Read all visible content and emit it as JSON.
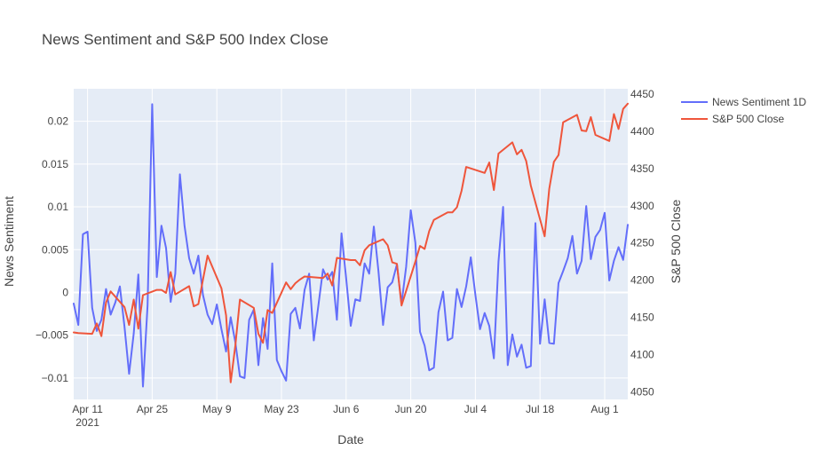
{
  "chart_data": {
    "type": "line",
    "title": "News Sentiment and S&P 500 Index Close",
    "xlabel": "Date",
    "ylabel": "News Sentiment",
    "y2label": "S&P 500 Close",
    "x_start": "2021-04-08",
    "x_end": "2021-08-06",
    "x_ticks": [
      {
        "date": "2021-04-11",
        "label": "Apr 11",
        "sublabel": "2021"
      },
      {
        "date": "2021-04-25",
        "label": "Apr 25",
        "sublabel": ""
      },
      {
        "date": "2021-05-09",
        "label": "May 9",
        "sublabel": ""
      },
      {
        "date": "2021-05-23",
        "label": "May 23",
        "sublabel": ""
      },
      {
        "date": "2021-06-06",
        "label": "Jun 6",
        "sublabel": ""
      },
      {
        "date": "2021-06-20",
        "label": "Jun 20",
        "sublabel": ""
      },
      {
        "date": "2021-07-04",
        "label": "Jul 4",
        "sublabel": ""
      },
      {
        "date": "2021-07-18",
        "label": "Jul 18",
        "sublabel": ""
      },
      {
        "date": "2021-08-01",
        "label": "Aug 1",
        "sublabel": ""
      }
    ],
    "ylim": [
      -0.0125,
      0.0238
    ],
    "y_ticks": [
      {
        "value": -0.01,
        "label": "−0.01"
      },
      {
        "value": -0.005,
        "label": "−0.005"
      },
      {
        "value": 0,
        "label": "0"
      },
      {
        "value": 0.005,
        "label": "0.005"
      },
      {
        "value": 0.01,
        "label": "0.01"
      },
      {
        "value": 0.015,
        "label": "0.015"
      },
      {
        "value": 0.02,
        "label": "0.02"
      }
    ],
    "y2lim": [
      4040,
      4457
    ],
    "y2_ticks": [
      {
        "value": 4050,
        "label": "4050"
      },
      {
        "value": 4100,
        "label": "4100"
      },
      {
        "value": 4150,
        "label": "4150"
      },
      {
        "value": 4200,
        "label": "4200"
      },
      {
        "value": 4250,
        "label": "4250"
      },
      {
        "value": 4300,
        "label": "4300"
      },
      {
        "value": 4350,
        "label": "4350"
      },
      {
        "value": 4400,
        "label": "4400"
      },
      {
        "value": 4450,
        "label": "4450"
      }
    ],
    "grid": true,
    "legend_position": "top-right",
    "series": [
      {
        "name": "News Sentiment 1D",
        "axis": "y",
        "color": "#636EFA",
        "points": [
          [
            "2021-04-08",
            -0.0013
          ],
          [
            "2021-04-09",
            -0.0038
          ],
          [
            "2021-04-10",
            0.0068
          ],
          [
            "2021-04-11",
            0.0071
          ],
          [
            "2021-04-12",
            -0.0018
          ],
          [
            "2021-04-13",
            -0.0045
          ],
          [
            "2021-04-14",
            -0.0032
          ],
          [
            "2021-04-15",
            0.0004
          ],
          [
            "2021-04-16",
            -0.0026
          ],
          [
            "2021-04-17",
            -0.0012
          ],
          [
            "2021-04-18",
            0.0007
          ],
          [
            "2021-04-19",
            -0.004
          ],
          [
            "2021-04-20",
            -0.0095
          ],
          [
            "2021-04-21",
            -0.0048
          ],
          [
            "2021-04-22",
            0.0021
          ],
          [
            "2021-04-23",
            -0.011
          ],
          [
            "2021-04-24",
            -0.0015
          ],
          [
            "2021-04-25",
            0.022
          ],
          [
            "2021-04-26",
            0.0018
          ],
          [
            "2021-04-27",
            0.0078
          ],
          [
            "2021-04-28",
            0.0052
          ],
          [
            "2021-04-29",
            -0.0011
          ],
          [
            "2021-04-30",
            0.0022
          ],
          [
            "2021-05-01",
            0.0138
          ],
          [
            "2021-05-02",
            0.0078
          ],
          [
            "2021-05-03",
            0.004
          ],
          [
            "2021-05-04",
            0.0022
          ],
          [
            "2021-05-05",
            0.0043
          ],
          [
            "2021-05-06",
            -0.0003
          ],
          [
            "2021-05-07",
            -0.0026
          ],
          [
            "2021-05-08",
            -0.0037
          ],
          [
            "2021-05-09",
            -0.0014
          ],
          [
            "2021-05-10",
            -0.0043
          ],
          [
            "2021-05-11",
            -0.0069
          ],
          [
            "2021-05-12",
            -0.0029
          ],
          [
            "2021-05-13",
            -0.0058
          ],
          [
            "2021-05-14",
            -0.0098
          ],
          [
            "2021-05-15",
            -0.01
          ],
          [
            "2021-05-16",
            -0.0032
          ],
          [
            "2021-05-17",
            -0.002
          ],
          [
            "2021-05-18",
            -0.0085
          ],
          [
            "2021-05-19",
            -0.003
          ],
          [
            "2021-05-20",
            -0.0066
          ],
          [
            "2021-05-21",
            0.0034
          ],
          [
            "2021-05-22",
            -0.0079
          ],
          [
            "2021-05-23",
            -0.0092
          ],
          [
            "2021-05-24",
            -0.0103
          ],
          [
            "2021-05-25",
            -0.0025
          ],
          [
            "2021-05-26",
            -0.0018
          ],
          [
            "2021-05-27",
            -0.0042
          ],
          [
            "2021-05-28",
            0.0003
          ],
          [
            "2021-05-29",
            0.0022
          ],
          [
            "2021-05-30",
            -0.0056
          ],
          [
            "2021-05-31",
            -0.0015
          ],
          [
            "2021-06-01",
            0.0027
          ],
          [
            "2021-06-02",
            0.0015
          ],
          [
            "2021-06-03",
            0.0024
          ],
          [
            "2021-06-04",
            -0.0032
          ],
          [
            "2021-06-05",
            0.0069
          ],
          [
            "2021-06-06",
            0.0017
          ],
          [
            "2021-06-07",
            -0.0039
          ],
          [
            "2021-06-08",
            -0.0008
          ],
          [
            "2021-06-09",
            -0.001
          ],
          [
            "2021-06-10",
            0.0034
          ],
          [
            "2021-06-11",
            0.0022
          ],
          [
            "2021-06-12",
            0.0077
          ],
          [
            "2021-06-13",
            0.0025
          ],
          [
            "2021-06-14",
            -0.0038
          ],
          [
            "2021-06-15",
            0.0006
          ],
          [
            "2021-06-16",
            0.0012
          ],
          [
            "2021-06-17",
            0.0033
          ],
          [
            "2021-06-18",
            -0.0013
          ],
          [
            "2021-06-19",
            0.003
          ],
          [
            "2021-06-20",
            0.0096
          ],
          [
            "2021-06-21",
            0.0058
          ],
          [
            "2021-06-22",
            -0.0046
          ],
          [
            "2021-06-23",
            -0.0062
          ],
          [
            "2021-06-24",
            -0.0091
          ],
          [
            "2021-06-25",
            -0.0088
          ],
          [
            "2021-06-26",
            -0.0023
          ],
          [
            "2021-06-27",
            0.0001
          ],
          [
            "2021-06-28",
            -0.0056
          ],
          [
            "2021-06-29",
            -0.0053
          ],
          [
            "2021-06-30",
            0.0004
          ],
          [
            "2021-07-01",
            -0.0017
          ],
          [
            "2021-07-02",
            0.0007
          ],
          [
            "2021-07-03",
            0.0041
          ],
          [
            "2021-07-04",
            -0.0003
          ],
          [
            "2021-07-05",
            -0.0043
          ],
          [
            "2021-07-06",
            -0.0024
          ],
          [
            "2021-07-07",
            -0.0039
          ],
          [
            "2021-07-08",
            -0.0077
          ],
          [
            "2021-07-09",
            0.0036
          ],
          [
            "2021-07-10",
            0.01
          ],
          [
            "2021-07-11",
            -0.0085
          ],
          [
            "2021-07-12",
            -0.0049
          ],
          [
            "2021-07-13",
            -0.0075
          ],
          [
            "2021-07-14",
            -0.0061
          ],
          [
            "2021-07-15",
            -0.0088
          ],
          [
            "2021-07-16",
            -0.0086
          ],
          [
            "2021-07-17",
            0.0081
          ],
          [
            "2021-07-18",
            -0.006
          ],
          [
            "2021-07-19",
            -0.0008
          ],
          [
            "2021-07-20",
            -0.0059
          ],
          [
            "2021-07-21",
            -0.006
          ],
          [
            "2021-07-22",
            0.0011
          ],
          [
            "2021-07-23",
            0.0025
          ],
          [
            "2021-07-24",
            0.004
          ],
          [
            "2021-07-25",
            0.0066
          ],
          [
            "2021-07-26",
            0.0022
          ],
          [
            "2021-07-27",
            0.0037
          ],
          [
            "2021-07-28",
            0.0101
          ],
          [
            "2021-07-29",
            0.0039
          ],
          [
            "2021-07-30",
            0.0065
          ],
          [
            "2021-07-31",
            0.0073
          ],
          [
            "2021-08-01",
            0.0093
          ],
          [
            "2021-08-02",
            0.0014
          ],
          [
            "2021-08-03",
            0.0037
          ],
          [
            "2021-08-04",
            0.0053
          ],
          [
            "2021-08-05",
            0.0038
          ],
          [
            "2021-08-06",
            0.0079
          ]
        ]
      },
      {
        "name": "S&P 500 Close",
        "axis": "y2",
        "color": "#EF553B",
        "points": [
          [
            "2021-04-08",
            4130
          ],
          [
            "2021-04-09",
            4129
          ],
          [
            "2021-04-12",
            4128
          ],
          [
            "2021-04-13",
            4142
          ],
          [
            "2021-04-14",
            4125
          ],
          [
            "2021-04-15",
            4170
          ],
          [
            "2021-04-16",
            4185
          ],
          [
            "2021-04-19",
            4164
          ],
          [
            "2021-04-20",
            4140
          ],
          [
            "2021-04-21",
            4174
          ],
          [
            "2021-04-22",
            4135
          ],
          [
            "2021-04-23",
            4180
          ],
          [
            "2021-04-26",
            4187
          ],
          [
            "2021-04-27",
            4187
          ],
          [
            "2021-04-28",
            4183
          ],
          [
            "2021-04-29",
            4211
          ],
          [
            "2021-04-30",
            4181
          ],
          [
            "2021-05-03",
            4192
          ],
          [
            "2021-05-04",
            4165
          ],
          [
            "2021-05-05",
            4168
          ],
          [
            "2021-05-06",
            4201
          ],
          [
            "2021-05-07",
            4233
          ],
          [
            "2021-05-10",
            4189
          ],
          [
            "2021-05-11",
            4153
          ],
          [
            "2021-05-12",
            4063
          ],
          [
            "2021-05-13",
            4112
          ],
          [
            "2021-05-14",
            4174
          ],
          [
            "2021-05-17",
            4163
          ],
          [
            "2021-05-18",
            4128
          ],
          [
            "2021-05-19",
            4116
          ],
          [
            "2021-05-20",
            4160
          ],
          [
            "2021-05-21",
            4156
          ],
          [
            "2021-05-24",
            4197
          ],
          [
            "2021-05-25",
            4188
          ],
          [
            "2021-05-26",
            4196
          ],
          [
            "2021-05-27",
            4201
          ],
          [
            "2021-05-28",
            4205
          ],
          [
            "2021-06-01",
            4203
          ],
          [
            "2021-06-02",
            4209
          ],
          [
            "2021-06-03",
            4193
          ],
          [
            "2021-06-04",
            4230
          ],
          [
            "2021-06-07",
            4227
          ],
          [
            "2021-06-08",
            4227
          ],
          [
            "2021-06-09",
            4220
          ],
          [
            "2021-06-10",
            4240
          ],
          [
            "2021-06-11",
            4247
          ],
          [
            "2021-06-14",
            4255
          ],
          [
            "2021-06-15",
            4247
          ],
          [
            "2021-06-16",
            4224
          ],
          [
            "2021-06-17",
            4222
          ],
          [
            "2021-06-18",
            4166
          ],
          [
            "2021-06-21",
            4225
          ],
          [
            "2021-06-22",
            4246
          ],
          [
            "2021-06-23",
            4242
          ],
          [
            "2021-06-24",
            4266
          ],
          [
            "2021-06-25",
            4281
          ],
          [
            "2021-06-28",
            4291
          ],
          [
            "2021-06-29",
            4291
          ],
          [
            "2021-06-30",
            4298
          ],
          [
            "2021-07-01",
            4320
          ],
          [
            "2021-07-02",
            4352
          ],
          [
            "2021-07-06",
            4344
          ],
          [
            "2021-07-07",
            4358
          ],
          [
            "2021-07-08",
            4321
          ],
          [
            "2021-07-09",
            4370
          ],
          [
            "2021-07-12",
            4385
          ],
          [
            "2021-07-13",
            4369
          ],
          [
            "2021-07-14",
            4375
          ],
          [
            "2021-07-15",
            4360
          ],
          [
            "2021-07-16",
            4327
          ],
          [
            "2021-07-19",
            4259
          ],
          [
            "2021-07-20",
            4323
          ],
          [
            "2021-07-21",
            4359
          ],
          [
            "2021-07-22",
            4368
          ],
          [
            "2021-07-23",
            4412
          ],
          [
            "2021-07-26",
            4422
          ],
          [
            "2021-07-27",
            4401
          ],
          [
            "2021-07-28",
            4400
          ],
          [
            "2021-07-29",
            4419
          ],
          [
            "2021-07-30",
            4395
          ],
          [
            "2021-08-02",
            4387
          ],
          [
            "2021-08-03",
            4423
          ],
          [
            "2021-08-04",
            4403
          ],
          [
            "2021-08-05",
            4430
          ],
          [
            "2021-08-06",
            4437
          ]
        ]
      }
    ]
  }
}
